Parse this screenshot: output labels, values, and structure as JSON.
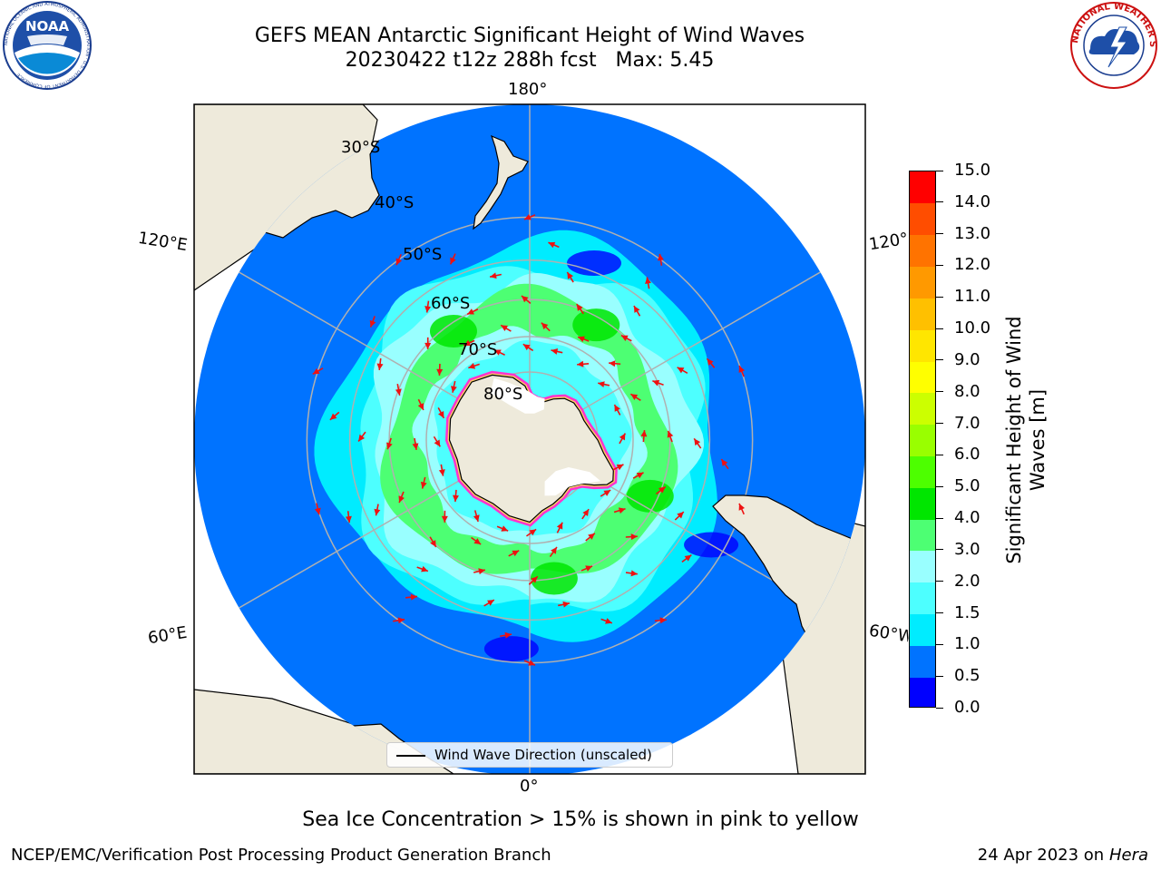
{
  "header": {
    "title_line1": "GEFS MEAN Antarctic Significant Height of Wind Waves",
    "title_line2": "20230422 t12z 288h fcst   Max: 5.45"
  },
  "logos": {
    "noaa": {
      "name": "NOAA",
      "ring_text": "NATIONAL OCEANIC AND ATMOSPHERIC ADMINISTRATION · U.S. DEPARTMENT OF COMMERCE"
    },
    "nws": {
      "ring_text": "NATIONAL WEATHER SERVICE"
    }
  },
  "map": {
    "projection": "south-polar-stereographic",
    "lon_labels": {
      "top": "180°",
      "bottom": "0°",
      "upper_left": "120°E",
      "upper_right": "120°W",
      "lower_left": "60°E",
      "lower_right": "60°W"
    },
    "lat_labels": [
      "30°S",
      "40°S",
      "50°S",
      "60°S",
      "70°S",
      "80°S"
    ],
    "land_color": "#eeeadb",
    "ice_color": "#ffffff",
    "ice_edge_colors": [
      "#ff33cc",
      "#ffcc66"
    ],
    "arrow_color": "#ee1111",
    "grid_color": "#b0b0b0",
    "legend": {
      "label": "Wind Wave Direction (unscaled)"
    }
  },
  "colorbar": {
    "label": "Significant Height of Wind Waves [m]",
    "levels": [
      "0.0",
      "0.5",
      "1.0",
      "1.5",
      "2.0",
      "3.0",
      "4.0",
      "5.0",
      "6.0",
      "7.0",
      "8.0",
      "9.0",
      "10.0",
      "11.0",
      "12.0",
      "13.0",
      "14.0",
      "15.0"
    ],
    "colors": [
      "#0000ff",
      "#0073ff",
      "#00ecff",
      "#4dffff",
      "#99ffff",
      "#4dff73",
      "#00e600",
      "#4dff00",
      "#99ff00",
      "#ccff00",
      "#ffff00",
      "#ffe600",
      "#ffc000",
      "#ff9900",
      "#ff7300",
      "#ff4d00",
      "#ff0000"
    ]
  },
  "footer": {
    "note": "Sea Ice Concentration > 15% is shown in pink to yellow",
    "credit": "NCEP/EMC/Verification Post Processing Product Generation Branch",
    "date": "24 Apr 2023 on ",
    "host": "Hera"
  }
}
